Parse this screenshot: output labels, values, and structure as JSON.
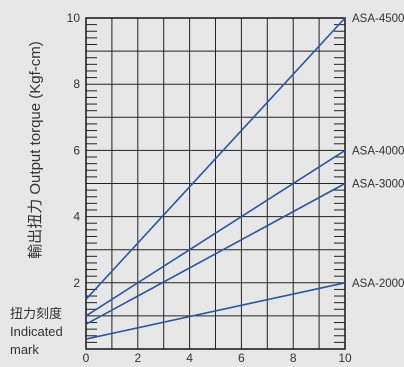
{
  "chart_data": {
    "type": "line",
    "ylabel": "輸出扭力 Output torque (Kgf-cm)",
    "xlabel_lines": [
      "扭力刻度",
      "Indicated",
      "mark"
    ],
    "xlim": [
      0,
      10
    ],
    "ylim": [
      0,
      10
    ],
    "x_ticks": [
      0,
      2,
      4,
      6,
      8,
      10
    ],
    "y_ticks": [
      2,
      4,
      6,
      8,
      10
    ],
    "grid": true,
    "series": [
      {
        "name": "ASA-4500",
        "x": [
          0,
          10
        ],
        "y": [
          1.5,
          10
        ]
      },
      {
        "name": "ASA-4000",
        "x": [
          0,
          10
        ],
        "y": [
          1.0,
          6.0
        ]
      },
      {
        "name": "ASA-3000",
        "x": [
          0,
          10
        ],
        "y": [
          0.75,
          5.0
        ]
      },
      {
        "name": "ASA-2000",
        "x": [
          0,
          10
        ],
        "y": [
          0.3,
          2.0
        ]
      }
    ],
    "colors": {
      "line": "#2a56a4",
      "grid": "#222222",
      "background": "#e7e7e8",
      "text": "#333333"
    }
  }
}
